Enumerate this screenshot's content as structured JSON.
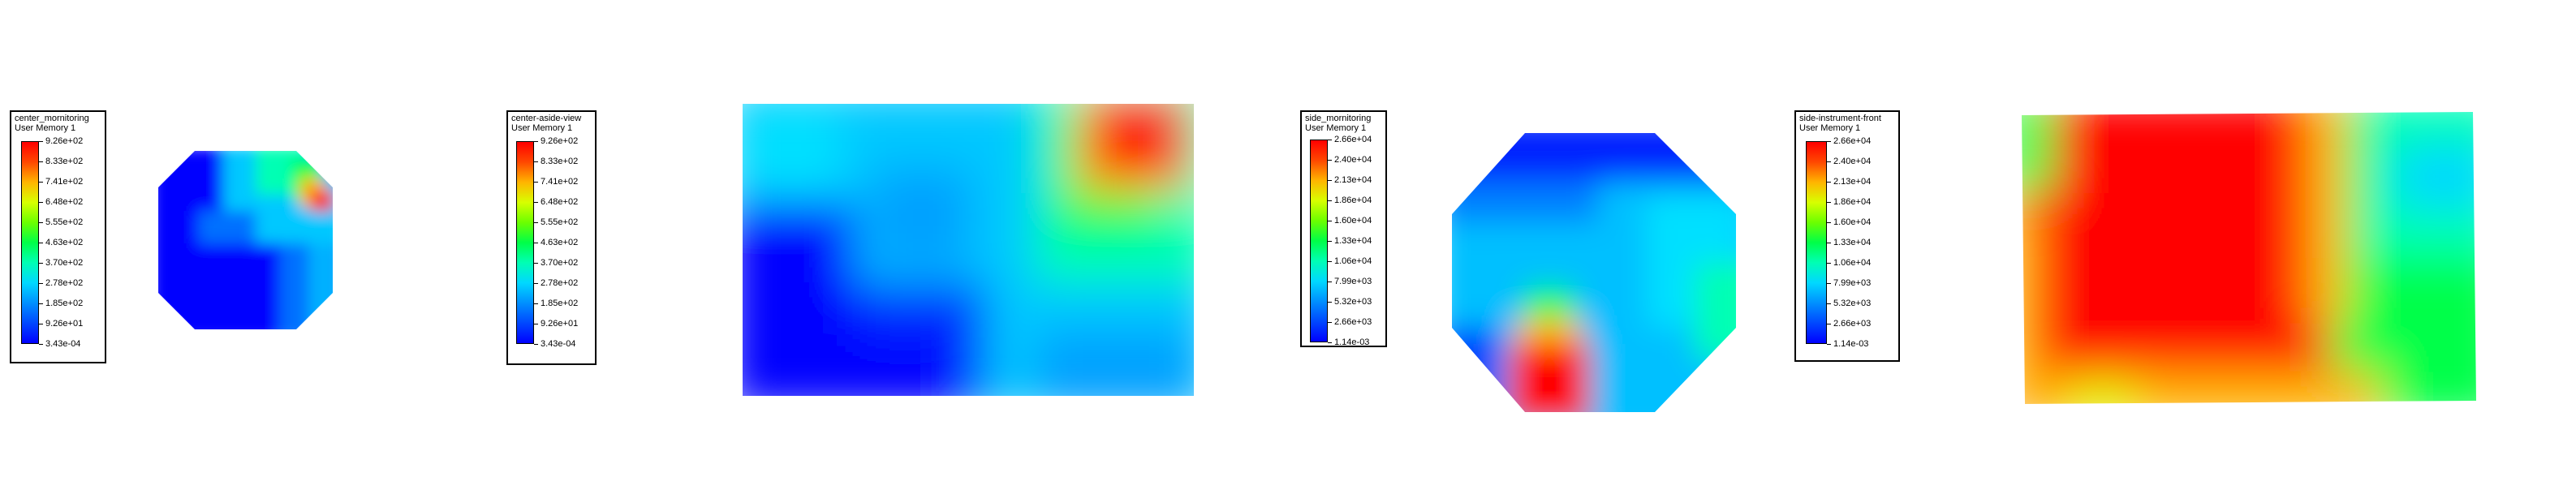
{
  "colors": {
    "scale": [
      "#0000ff",
      "#0048ff",
      "#0090ff",
      "#00d8ff",
      "#00ffb4",
      "#00ff48",
      "#6cff00",
      "#d8ff00",
      "#ffb400",
      "#ff4800",
      "#ff0000"
    ],
    "background": "#ffffff"
  },
  "chart_data": [
    {
      "type": "heatmap",
      "title": "center_mornitoring",
      "subtitle": "User Memory 1",
      "colorbar_ticks": [
        "9.26e+02",
        "8.33e+02",
        "7.41e+02",
        "6.48e+02",
        "5.55e+02",
        "4.63e+02",
        "3.70e+02",
        "2.78e+02",
        "1.85e+02",
        "9.26e+01",
        "3.43e-04"
      ],
      "range": [
        0.000343,
        926
      ],
      "shape": "octagon"
    },
    {
      "type": "heatmap",
      "title": "center-aside-view",
      "subtitle": "User Memory 1",
      "colorbar_ticks": [
        "9.26e+02",
        "8.33e+02",
        "7.41e+02",
        "6.48e+02",
        "5.55e+02",
        "4.63e+02",
        "3.70e+02",
        "2.78e+02",
        "1.85e+02",
        "9.26e+01",
        "3.43e-04"
      ],
      "range": [
        0.000343,
        926
      ],
      "shape": "rectangle"
    },
    {
      "type": "heatmap",
      "title": "side_mornitoring",
      "subtitle": "User Memory 1",
      "colorbar_ticks": [
        "2.66e+04",
        "2.40e+04",
        "2.13e+04",
        "1.86e+04",
        "1.60e+04",
        "1.33e+04",
        "1.06e+04",
        "7.99e+03",
        "5.32e+03",
        "2.66e+03",
        "1.14e-03"
      ],
      "range": [
        0.00114,
        26600
      ],
      "shape": "octagon"
    },
    {
      "type": "heatmap",
      "title": "side-instrument-front",
      "subtitle": "User Memory 1",
      "colorbar_ticks": [
        "2.66e+04",
        "2.40e+04",
        "2.13e+04",
        "1.86e+04",
        "1.60e+04",
        "1.33e+04",
        "1.06e+04",
        "7.99e+03",
        "5.32e+03",
        "2.66e+03",
        "1.14e-03"
      ],
      "range": [
        0.00114,
        26600
      ],
      "shape": "rectangle"
    }
  ]
}
